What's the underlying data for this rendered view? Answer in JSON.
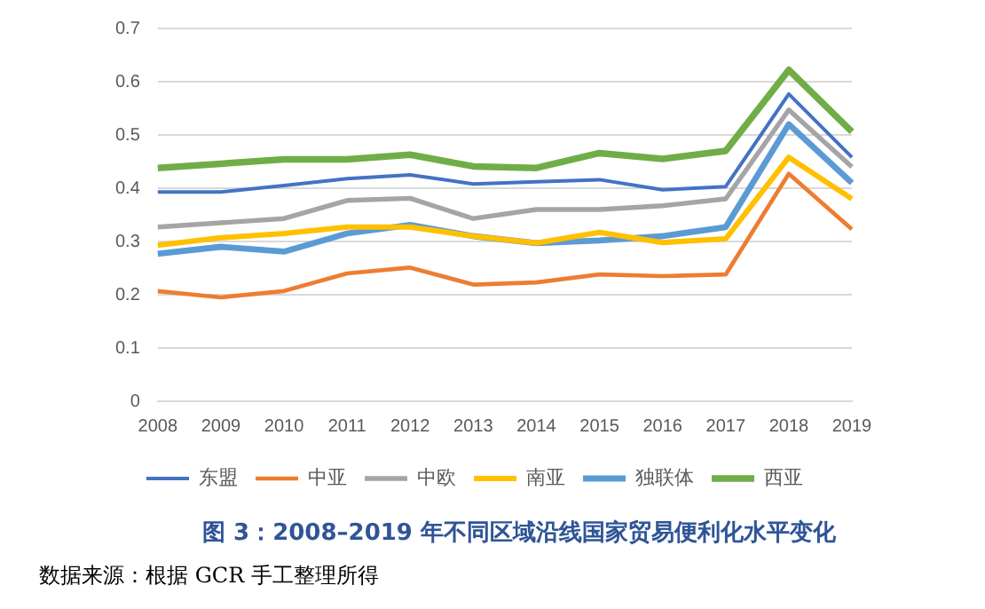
{
  "chart_data": {
    "type": "line",
    "title": "图 3：2008–2019 年不同区域沿线国家贸易便利化水平变化",
    "annotations": [
      "数据来源：根据 GCR 手工整理所得"
    ],
    "categories": [
      "2008",
      "2009",
      "2010",
      "2011",
      "2012",
      "2013",
      "2014",
      "2015",
      "2016",
      "2017",
      "2018",
      "2019"
    ],
    "series": [
      {
        "name": "东盟",
        "color": "#4472c4",
        "values": [
          0.393,
          0.393,
          0.405,
          0.418,
          0.425,
          0.408,
          0.412,
          0.416,
          0.397,
          0.403,
          0.577,
          0.458
        ]
      },
      {
        "name": "中亚",
        "color": "#ed7d31",
        "values": [
          0.207,
          0.195,
          0.207,
          0.24,
          0.251,
          0.219,
          0.223,
          0.238,
          0.235,
          0.238,
          0.427,
          0.323
        ]
      },
      {
        "name": "中欧",
        "color": "#a5a5a5",
        "values": [
          0.327,
          0.335,
          0.343,
          0.377,
          0.381,
          0.343,
          0.36,
          0.36,
          0.367,
          0.38,
          0.547,
          0.44
        ]
      },
      {
        "name": "南亚",
        "color": "#ffc000",
        "values": [
          0.293,
          0.307,
          0.315,
          0.327,
          0.327,
          0.31,
          0.297,
          0.317,
          0.298,
          0.305,
          0.458,
          0.38
        ]
      },
      {
        "name": "独联体",
        "color": "#5b9bd5",
        "values": [
          0.277,
          0.29,
          0.281,
          0.315,
          0.331,
          0.31,
          0.297,
          0.302,
          0.31,
          0.327,
          0.52,
          0.41
        ]
      },
      {
        "name": "西亚",
        "color": "#70ad47",
        "values": [
          0.438,
          0.446,
          0.454,
          0.454,
          0.463,
          0.441,
          0.438,
          0.466,
          0.455,
          0.47,
          0.622,
          0.506
        ]
      }
    ],
    "ylim": [
      0,
      0.7
    ],
    "yticks": [
      0,
      0.1,
      0.2,
      0.3,
      0.4,
      0.5,
      0.6,
      0.7
    ],
    "grid": "y",
    "legend": "bottom",
    "marker": "none",
    "line_style": "solid"
  }
}
